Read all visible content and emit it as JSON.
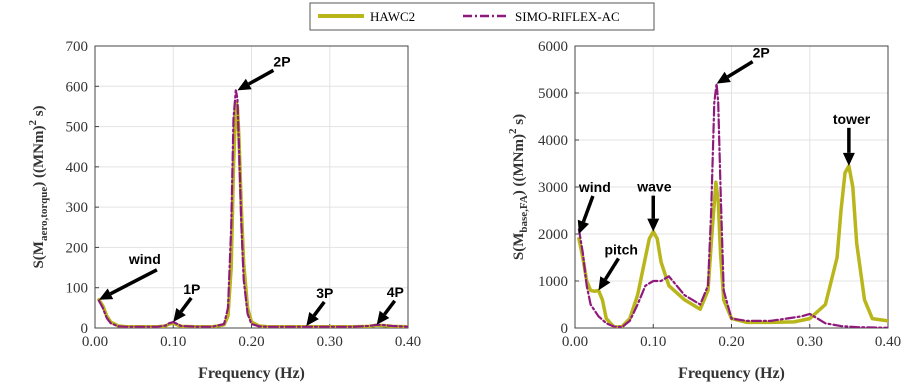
{
  "legend": {
    "items": [
      {
        "label": "HAWC2",
        "color": "#b9b61c",
        "dash": "solid"
      },
      {
        "label": "SIMO-RIFLEX-AC",
        "color": "#8e1b7c",
        "dash": "dashdot"
      }
    ]
  },
  "chart_data": [
    {
      "type": "line",
      "xlabel": "Frequency (Hz)",
      "ylabel": {
        "pre": "S(M",
        "sub": "aero,torque",
        "post": ") ((MNm)",
        "sup": "2",
        "tail": " s)"
      },
      "xlim": [
        0,
        0.4
      ],
      "ylim": [
        0,
        700
      ],
      "xticks": [
        "0.00",
        "0.10",
        "0.20",
        "0.30",
        "0.40"
      ],
      "yticks": [
        "0",
        "100",
        "200",
        "300",
        "400",
        "500",
        "600",
        "700"
      ],
      "grid": true,
      "series": [
        {
          "name": "HAWC2",
          "color": "#b9b61c",
          "x": [
            0.005,
            0.01,
            0.015,
            0.02,
            0.03,
            0.04,
            0.06,
            0.08,
            0.09,
            0.095,
            0.1,
            0.105,
            0.11,
            0.13,
            0.15,
            0.165,
            0.17,
            0.174,
            0.177,
            0.18,
            0.182,
            0.184,
            0.187,
            0.19,
            0.195,
            0.2,
            0.21,
            0.22,
            0.25,
            0.3,
            0.33,
            0.35,
            0.36,
            0.37,
            0.38,
            0.4
          ],
          "y": [
            70,
            55,
            30,
            15,
            5,
            3,
            3,
            3,
            5,
            10,
            12,
            8,
            4,
            3,
            3,
            8,
            30,
            150,
            400,
            560,
            550,
            470,
            300,
            160,
            50,
            15,
            5,
            3,
            3,
            3,
            3,
            4,
            7,
            6,
            4,
            3
          ]
        },
        {
          "name": "SIMO-RIFLEX-AC",
          "color": "#8e1b7c",
          "x": [
            0.005,
            0.01,
            0.015,
            0.02,
            0.03,
            0.04,
            0.06,
            0.08,
            0.09,
            0.095,
            0.1,
            0.105,
            0.11,
            0.13,
            0.15,
            0.165,
            0.17,
            0.174,
            0.177,
            0.18,
            0.182,
            0.184,
            0.187,
            0.19,
            0.195,
            0.2,
            0.21,
            0.22,
            0.25,
            0.3,
            0.33,
            0.35,
            0.36,
            0.37,
            0.38,
            0.4
          ],
          "y": [
            68,
            50,
            25,
            12,
            4,
            3,
            3,
            3,
            6,
            12,
            15,
            10,
            5,
            3,
            3,
            10,
            50,
            250,
            520,
            590,
            570,
            450,
            260,
            120,
            35,
            10,
            4,
            3,
            3,
            3,
            3,
            5,
            8,
            7,
            5,
            3
          ]
        }
      ],
      "annotations": [
        {
          "text": "wind",
          "x": 0.005,
          "y": 70
        },
        {
          "text": "1P",
          "x": 0.1,
          "y": 15
        },
        {
          "text": "2P",
          "x": 0.182,
          "y": 590
        },
        {
          "text": "3P",
          "x": 0.27,
          "y": 5
        },
        {
          "text": "4P",
          "x": 0.36,
          "y": 8
        }
      ]
    },
    {
      "type": "line",
      "xlabel": "Frequency (Hz)",
      "ylabel": {
        "pre": "S(M",
        "sub": "base,FA",
        "post": ") ((MNm)",
        "sup": "2",
        "tail": " s)"
      },
      "xlim": [
        0,
        0.4
      ],
      "ylim": [
        0,
        6000
      ],
      "xticks": [
        "0.00",
        "0.10",
        "0.20",
        "0.30",
        "0.40"
      ],
      "yticks": [
        "0",
        "1000",
        "2000",
        "3000",
        "4000",
        "5000",
        "6000"
      ],
      "grid": true,
      "series": [
        {
          "name": "HAWC2",
          "color": "#b9b61c",
          "x": [
            0.005,
            0.01,
            0.015,
            0.02,
            0.025,
            0.03,
            0.035,
            0.04,
            0.05,
            0.06,
            0.07,
            0.08,
            0.09,
            0.095,
            0.1,
            0.105,
            0.11,
            0.12,
            0.14,
            0.16,
            0.17,
            0.175,
            0.18,
            0.183,
            0.186,
            0.19,
            0.2,
            0.22,
            0.25,
            0.28,
            0.3,
            0.32,
            0.335,
            0.34,
            0.345,
            0.35,
            0.355,
            0.36,
            0.37,
            0.38,
            0.4
          ],
          "y": [
            1900,
            1500,
            1000,
            800,
            780,
            800,
            600,
            200,
            20,
            30,
            200,
            700,
            1500,
            1900,
            2050,
            1900,
            1400,
            900,
            600,
            400,
            800,
            2000,
            3100,
            2700,
            1600,
            600,
            200,
            120,
            120,
            130,
            200,
            500,
            1500,
            2500,
            3300,
            3450,
            3000,
            1800,
            600,
            200,
            150
          ]
        },
        {
          "name": "SIMO-RIFLEX-AC",
          "color": "#8e1b7c",
          "x": [
            0.005,
            0.01,
            0.015,
            0.02,
            0.03,
            0.04,
            0.05,
            0.06,
            0.07,
            0.08,
            0.09,
            0.1,
            0.11,
            0.115,
            0.12,
            0.13,
            0.14,
            0.16,
            0.17,
            0.174,
            0.178,
            0.181,
            0.183,
            0.186,
            0.19,
            0.2,
            0.22,
            0.25,
            0.27,
            0.29,
            0.3,
            0.31,
            0.32,
            0.34,
            0.36,
            0.38,
            0.4
          ],
          "y": [
            2100,
            1600,
            900,
            500,
            250,
            100,
            30,
            20,
            150,
            500,
            900,
            1000,
            1000,
            1050,
            1100,
            900,
            700,
            500,
            900,
            2500,
            4800,
            5200,
            4800,
            3000,
            800,
            200,
            150,
            150,
            200,
            250,
            300,
            200,
            100,
            40,
            20,
            10,
            5
          ]
        }
      ],
      "annotations": [
        {
          "text": "wind",
          "x": 0.005,
          "y": 2000
        },
        {
          "text": "pitch",
          "x": 0.03,
          "y": 800
        },
        {
          "text": "wave",
          "x": 0.1,
          "y": 2050
        },
        {
          "text": "2P",
          "x": 0.181,
          "y": 5200
        },
        {
          "text": "tower",
          "x": 0.35,
          "y": 3450
        }
      ]
    }
  ]
}
